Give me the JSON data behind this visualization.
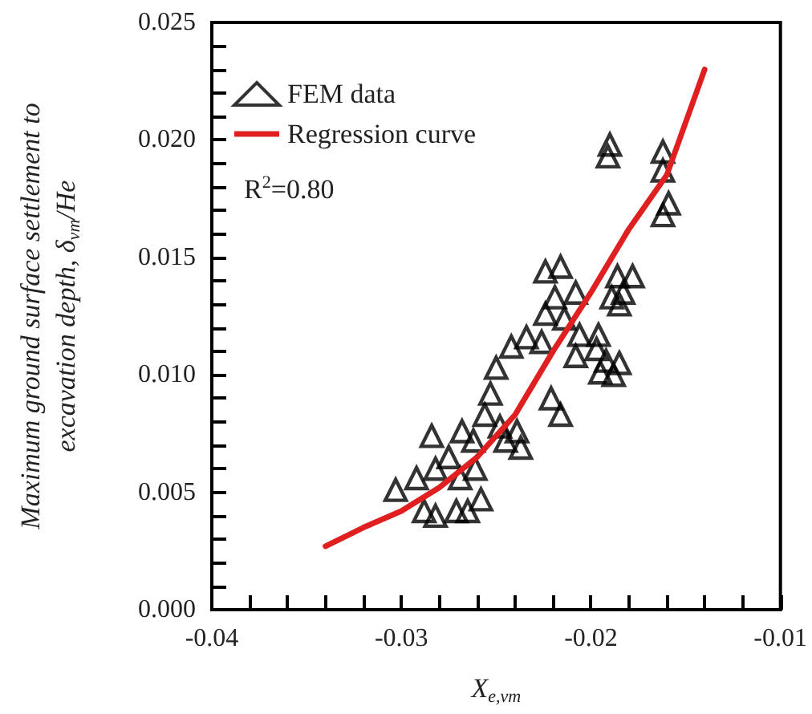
{
  "chart_data": {
    "type": "scatter",
    "xlabel": "X$_{e,vm}$",
    "ylabel": "Maximum ground surface settlement to\nexcavation depth, δ$_{vm}$/He",
    "xlim": [
      -0.04,
      -0.01
    ],
    "ylim": [
      0,
      0.025
    ],
    "xticks": [
      -0.04,
      {
        "value": -0.038,
        "label": null
      },
      {
        "value": -0.036,
        "label": null
      },
      {
        "value": -0.034,
        "label": null
      },
      {
        "value": -0.032,
        "label": null
      },
      -0.03,
      {
        "value": -0.028,
        "label": null
      },
      {
        "value": -0.026,
        "label": null
      },
      {
        "value": -0.024,
        "label": null
      },
      {
        "value": -0.022,
        "label": null
      },
      -0.02,
      {
        "value": -0.018,
        "label": null
      },
      {
        "value": -0.016,
        "label": null
      },
      {
        "value": -0.014,
        "label": null
      },
      {
        "value": -0.012,
        "label": null
      },
      -0.01
    ],
    "yticks": [
      {
        "value": 0,
        "label": "0.000"
      },
      {
        "value": 0.001,
        "label": null
      },
      {
        "value": 0.002,
        "label": null
      },
      {
        "value": 0.003,
        "label": null
      },
      {
        "value": 0.004,
        "label": null
      },
      0.005,
      {
        "value": 0.006,
        "label": null
      },
      {
        "value": 0.007,
        "label": null
      },
      {
        "value": 0.008,
        "label": null
      },
      {
        "value": 0.009,
        "label": null
      },
      {
        "value": 0.01,
        "label": "0.010"
      },
      {
        "value": 0.011,
        "label": null
      },
      {
        "value": 0.012,
        "label": null
      },
      {
        "value": 0.013,
        "label": null
      },
      {
        "value": 0.014,
        "label": null
      },
      0.015,
      {
        "value": 0.016,
        "label": null
      },
      {
        "value": 0.017,
        "label": null
      },
      {
        "value": 0.018,
        "label": null
      },
      {
        "value": 0.019,
        "label": null
      },
      {
        "value": 0.02,
        "label": "0.020"
      },
      {
        "value": 0.021,
        "label": null
      },
      {
        "value": 0.022,
        "label": null
      },
      {
        "value": 0.023,
        "label": null
      },
      {
        "value": 0.024,
        "label": null
      },
      0.025
    ],
    "grid": false,
    "legend": "top left",
    "marker": "triangle",
    "annotations": [
      "R$^{2}$=0.80"
    ],
    "series": [
      {
        "name": "FEM data",
        "color": "#000000",
        "x": [
          -0.0303,
          -0.0292,
          -0.0284,
          -0.0282,
          -0.0288,
          -0.0282,
          -0.0271,
          -0.0269,
          -0.0268,
          -0.0265,
          -0.0258,
          -0.0262,
          -0.0256,
          -0.0253,
          -0.025,
          -0.0242,
          -0.0234,
          -0.0239,
          -0.0237,
          -0.0226,
          -0.0224,
          -0.0221,
          -0.0216,
          -0.0224,
          -0.0216,
          -0.0219,
          -0.0208,
          -0.0214,
          -0.0206,
          -0.0208,
          -0.0192,
          -0.0195,
          -0.0189,
          -0.0186,
          -0.0248,
          -0.0245,
          -0.0261,
          -0.0275,
          -0.019,
          -0.0191,
          -0.0162,
          -0.0162,
          -0.0159,
          -0.0162,
          -0.0178,
          -0.0183,
          -0.0185,
          -0.0185,
          -0.0188,
          -0.0196,
          -0.0197
        ],
        "values": [
          0.0051,
          0.0056,
          0.0074,
          0.006,
          0.0042,
          0.004,
          0.0042,
          0.0056,
          0.0076,
          0.0042,
          0.0047,
          0.0072,
          0.0083,
          0.0092,
          0.0103,
          0.0112,
          0.0116,
          0.0076,
          0.0069,
          0.0114,
          0.0126,
          0.009,
          0.0083,
          0.0144,
          0.0146,
          0.0133,
          0.0135,
          0.0124,
          0.0117,
          0.0108,
          0.0106,
          0.0101,
          0.0133,
          0.0142,
          0.0078,
          0.0072,
          0.006,
          0.0065,
          0.0198,
          0.0193,
          0.0195,
          0.0187,
          0.0173,
          0.0168,
          0.0142,
          0.0135,
          0.013,
          0.0105,
          0.01,
          0.0117,
          0.0111
        ]
      },
      {
        "name": "Regression curve",
        "type": "line",
        "color": "#e02020",
        "marker": "none",
        "x": [
          -0.034,
          -0.032,
          -0.03,
          -0.028,
          -0.026,
          -0.024,
          -0.022,
          -0.02,
          -0.018,
          -0.016,
          -0.014
        ],
        "values": [
          0.0027,
          0.0035,
          0.0042,
          0.0052,
          0.0065,
          0.0083,
          0.011,
          0.0135,
          0.0162,
          0.0185,
          0.023
        ]
      }
    ]
  }
}
